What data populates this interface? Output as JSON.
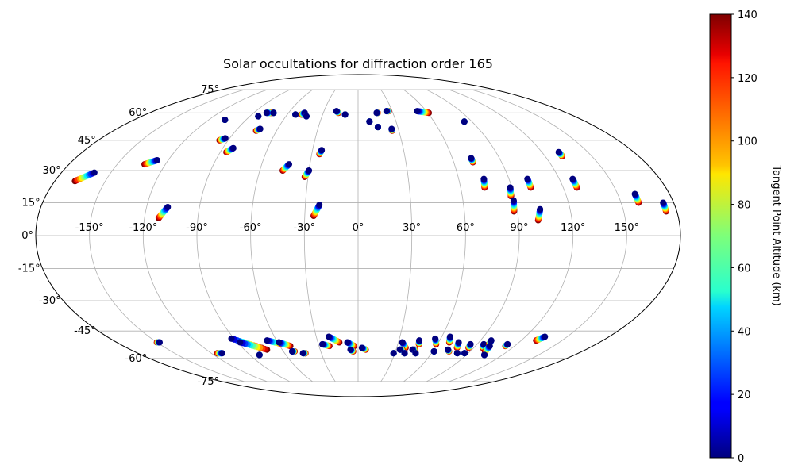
{
  "chart_data": {
    "type": "scatter",
    "projection": "mollweide",
    "title": "Solar occultations for diffraction order 165",
    "lon_tick_labels": [
      {
        "lon": -150,
        "label": "-150°"
      },
      {
        "lon": -120,
        "label": "-120°"
      },
      {
        "lon": -90,
        "label": "-90°"
      },
      {
        "lon": -60,
        "label": "-60°"
      },
      {
        "lon": -30,
        "label": "-30°"
      },
      {
        "lon": 0,
        "label": "0°"
      },
      {
        "lon": 30,
        "label": "30°"
      },
      {
        "lon": 60,
        "label": "60°"
      },
      {
        "lon": 90,
        "label": "90°"
      },
      {
        "lon": 120,
        "label": "120°"
      },
      {
        "lon": 150,
        "label": "150°"
      }
    ],
    "lat_tick_labels": [
      {
        "lat": 75,
        "label": "75°"
      },
      {
        "lat": 60,
        "label": "60°"
      },
      {
        "lat": 45,
        "label": "45°"
      },
      {
        "lat": 30,
        "label": "30°"
      },
      {
        "lat": 15,
        "label": "15°"
      },
      {
        "lat": 0,
        "label": "0°"
      },
      {
        "lat": -15,
        "label": "-15°"
      },
      {
        "lat": -30,
        "label": "-30°"
      },
      {
        "lat": -45,
        "label": "-45°"
      },
      {
        "lat": -60,
        "label": "-60°"
      },
      {
        "lat": -75,
        "label": "-75°"
      }
    ],
    "colorbar": {
      "label": "Tangent Point Altitude (km)",
      "range": [
        0,
        140
      ],
      "colormap": "jet",
      "ticks": [
        {
          "value": 0,
          "label": "0"
        },
        {
          "value": 20,
          "label": "20"
        },
        {
          "value": 40,
          "label": "40"
        },
        {
          "value": 60,
          "label": "60"
        },
        {
          "value": 80,
          "label": "80"
        },
        {
          "value": 100,
          "label": "100"
        },
        {
          "value": 120,
          "label": "120"
        },
        {
          "value": 140,
          "label": "140"
        }
      ]
    },
    "occultations": [
      {
        "lon_start": -168,
        "lat_start": 25,
        "lon_end": -160,
        "lat_end": 29
      },
      {
        "lon_start": -133,
        "lat_start": 33,
        "lon_end": -127,
        "lat_end": 35
      },
      {
        "lon_start": -112,
        "lat_start": 8,
        "lon_end": -108,
        "lat_end": 13
      },
      {
        "lon_start": -107,
        "lat_start": 56,
        "lon_end": -107,
        "lat_end": 56
      },
      {
        "lon_start": -96,
        "lat_start": 45,
        "lon_end": -93,
        "lat_end": 46
      },
      {
        "lon_start": -86,
        "lat_start": 39,
        "lon_end": -83,
        "lat_end": 41
      },
      {
        "lon_start": -83,
        "lat_start": 58,
        "lon_end": -83,
        "lat_end": 58
      },
      {
        "lon_start": -75,
        "lat_start": 60,
        "lon_end": -79,
        "lat_end": 60
      },
      {
        "lon_start": -73,
        "lat_start": 60,
        "lon_end": -73,
        "lat_end": 60
      },
      {
        "lon_start": -75,
        "lat_start": 50,
        "lon_end": -73,
        "lat_end": 51
      },
      {
        "lon_start": -53,
        "lat_start": 59,
        "lon_end": -53,
        "lat_end": 59
      },
      {
        "lon_start": -48,
        "lat_start": 59,
        "lon_end": -46,
        "lat_end": 60
      },
      {
        "lon_start": -43,
        "lat_start": 58,
        "lon_end": -43,
        "lat_end": 58
      },
      {
        "lon_start": -46,
        "lat_start": 30,
        "lon_end": -43,
        "lat_end": 33
      },
      {
        "lon_start": -32,
        "lat_start": 27,
        "lon_end": -30,
        "lat_end": 30
      },
      {
        "lon_start": -25,
        "lat_start": 9,
        "lon_end": -22,
        "lat_end": 14
      },
      {
        "lon_start": -25,
        "lat_start": 38,
        "lon_end": -24,
        "lat_end": 40
      },
      {
        "lon_start": -17,
        "lat_start": 60,
        "lon_end": -19,
        "lat_end": 61
      },
      {
        "lon_start": -11,
        "lat_start": 59,
        "lon_end": -11,
        "lat_end": 59
      },
      {
        "lon_start": 9,
        "lat_start": 55,
        "lon_end": 9,
        "lat_end": 55
      },
      {
        "lon_start": 15,
        "lat_start": 52,
        "lon_end": 15,
        "lat_end": 52
      },
      {
        "lon_start": 17,
        "lat_start": 60,
        "lon_end": 16,
        "lat_end": 60
      },
      {
        "lon_start": 25,
        "lat_start": 50,
        "lon_end": 25,
        "lat_end": 51
      },
      {
        "lon_start": 27,
        "lat_start": 61,
        "lon_end": 25,
        "lat_end": 61
      },
      {
        "lon_start": 61,
        "lat_start": 60,
        "lon_end": 52,
        "lat_end": 61
      },
      {
        "lon_start": 84,
        "lat_start": 55,
        "lon_end": 84,
        "lat_end": 55
      },
      {
        "lon_start": 72,
        "lat_start": 34,
        "lon_end": 72,
        "lat_end": 36
      },
      {
        "lon_start": 74,
        "lat_start": 22,
        "lon_end": 75,
        "lat_end": 26
      },
      {
        "lon_start": 88,
        "lat_start": 18,
        "lon_end": 89,
        "lat_end": 22
      },
      {
        "lon_start": 88,
        "lat_start": 11,
        "lon_end": 89,
        "lat_end": 16
      },
      {
        "lon_start": 101,
        "lat_start": 7,
        "lon_end": 103,
        "lat_end": 12
      },
      {
        "lon_start": 101,
        "lat_start": 22,
        "lon_end": 101,
        "lat_end": 26
      },
      {
        "lon_start": 128,
        "lat_start": 22,
        "lon_end": 128,
        "lat_end": 26
      },
      {
        "lon_start": 131,
        "lat_start": 37,
        "lon_end": 131,
        "lat_end": 39
      },
      {
        "lon_start": 160,
        "lat_start": 15,
        "lon_end": 160,
        "lat_end": 19
      },
      {
        "lon_start": 174,
        "lat_start": 11,
        "lon_end": 174,
        "lat_end": 15
      },
      {
        "lon_start": -150,
        "lat_start": -51,
        "lon_end": -148,
        "lat_end": -51
      },
      {
        "lon_start": -115,
        "lat_start": -57,
        "lon_end": -111,
        "lat_end": -57
      },
      {
        "lon_start": -75,
        "lat_start": -54,
        "lon_end": -92,
        "lat_end": -49
      },
      {
        "lon_start": -72,
        "lat_start": -55,
        "lon_end": -88,
        "lat_end": -51
      },
      {
        "lon_start": -82,
        "lat_start": -58,
        "lon_end": -82,
        "lat_end": -58
      },
      {
        "lon_start": -57,
        "lat_start": -52,
        "lon_end": -67,
        "lat_end": -50
      },
      {
        "lon_start": -52,
        "lat_start": -53,
        "lon_end": -59,
        "lat_end": -51
      },
      {
        "lon_start": -51,
        "lat_start": -56,
        "lon_end": -53,
        "lat_end": -56
      },
      {
        "lon_start": -43,
        "lat_start": -57,
        "lon_end": -45,
        "lat_end": -57
      },
      {
        "lon_start": -22,
        "lat_start": -53,
        "lon_end": -27,
        "lat_end": -52
      },
      {
        "lon_start": -14,
        "lat_start": -51,
        "lon_end": -21,
        "lat_end": -48
      },
      {
        "lon_start": -3,
        "lat_start": -53,
        "lon_end": -8,
        "lat_end": -51
      },
      {
        "lon_start": -4,
        "lat_start": -56,
        "lon_end": -6,
        "lat_end": -55
      },
      {
        "lon_start": 6,
        "lat_start": -55,
        "lon_end": 3,
        "lat_end": -54
      },
      {
        "lon_start": 29,
        "lat_start": -57,
        "lon_end": 29,
        "lat_end": -57
      },
      {
        "lon_start": 37,
        "lat_start": -54,
        "lon_end": 33,
        "lat_end": -51
      },
      {
        "lon_start": 35,
        "lat_start": -55,
        "lon_end": 33,
        "lat_end": -55
      },
      {
        "lon_start": 38,
        "lat_start": -57,
        "lon_end": 38,
        "lat_end": -57
      },
      {
        "lon_start": 46,
        "lat_start": -52,
        "lon_end": 45,
        "lat_end": -50
      },
      {
        "lon_start": 45,
        "lat_start": -55,
        "lon_end": 43,
        "lat_end": -55
      },
      {
        "lon_start": 47,
        "lat_start": -57,
        "lon_end": 47,
        "lat_end": -57
      },
      {
        "lon_start": 59,
        "lat_start": -52,
        "lon_end": 56,
        "lat_end": -49
      },
      {
        "lon_start": 61,
        "lat_start": -56,
        "lon_end": 61,
        "lat_end": -56
      },
      {
        "lon_start": 68,
        "lat_start": -51,
        "lon_end": 66,
        "lat_end": -48
      },
      {
        "lon_start": 73,
        "lat_start": -56,
        "lon_end": 71,
        "lat_end": -55
      },
      {
        "lon_start": 77,
        "lat_start": -54,
        "lon_end": 75,
        "lat_end": -51
      },
      {
        "lon_start": 81,
        "lat_start": -57,
        "lon_end": 81,
        "lat_end": -57
      },
      {
        "lon_start": 86,
        "lat_start": -54,
        "lon_end": 85,
        "lat_end": -52
      },
      {
        "lon_start": 87,
        "lat_start": -57,
        "lon_end": 87,
        "lat_end": -57
      },
      {
        "lon_start": 97,
        "lat_start": -54,
        "lon_end": 95,
        "lat_end": -52
      },
      {
        "lon_start": 99,
        "lat_start": -52,
        "lon_end": 98,
        "lat_end": -50
      },
      {
        "lon_start": 102,
        "lat_start": -56,
        "lon_end": 101,
        "lat_end": -53
      },
      {
        "lon_start": 105,
        "lat_start": -58,
        "lon_end": 105,
        "lat_end": -58
      },
      {
        "lon_start": 113,
        "lat_start": -53,
        "lon_end": 113,
        "lat_end": -52
      },
      {
        "lon_start": 131,
        "lat_start": -50,
        "lon_end": 134,
        "lat_end": -48
      }
    ]
  }
}
